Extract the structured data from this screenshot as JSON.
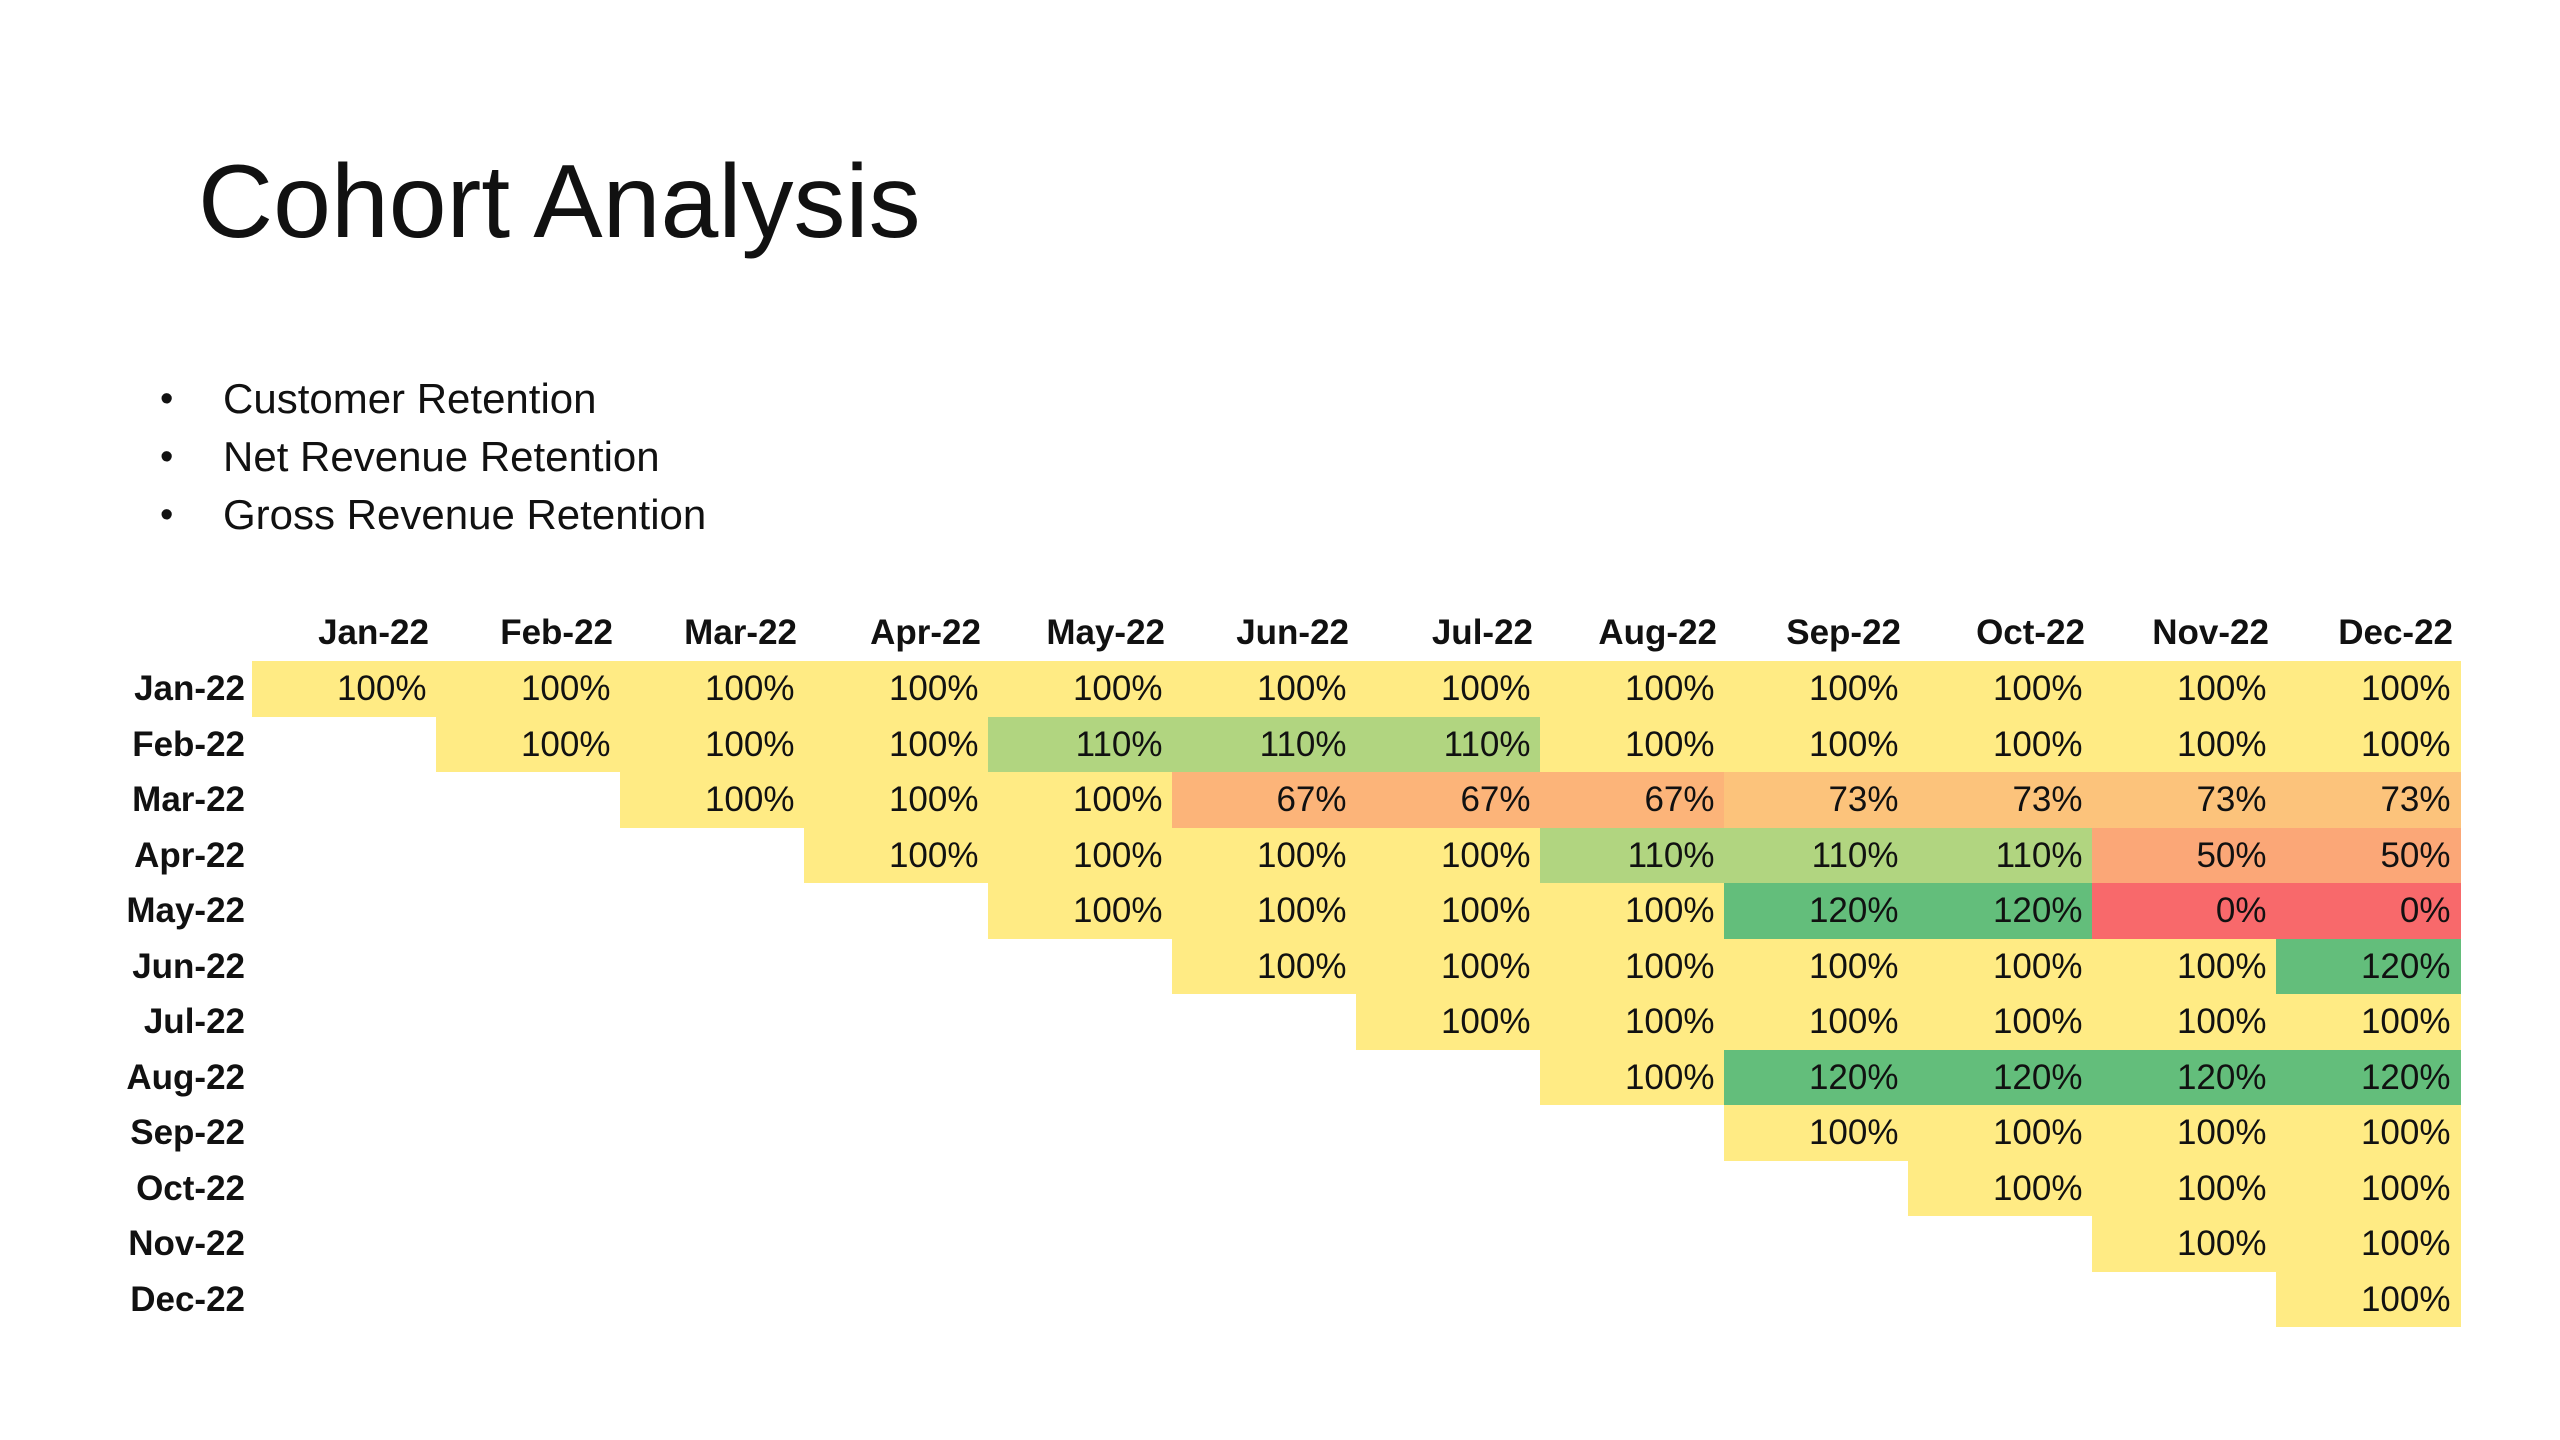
{
  "slide": {
    "title": "Cohort Analysis",
    "bullets": [
      "Customer Retention",
      "Net Revenue Retention",
      "Gross Revenue Retention"
    ]
  },
  "chart_data": {
    "type": "heatmap",
    "columns": [
      "Jan-22",
      "Feb-22",
      "Mar-22",
      "Apr-22",
      "May-22",
      "Jun-22",
      "Jul-22",
      "Aug-22",
      "Sep-22",
      "Oct-22",
      "Nov-22",
      "Dec-22"
    ],
    "rows": [
      "Jan-22",
      "Feb-22",
      "Mar-22",
      "Apr-22",
      "May-22",
      "Jun-22",
      "Jul-22",
      "Aug-22",
      "Sep-22",
      "Oct-22",
      "Nov-22",
      "Dec-22"
    ],
    "unit": "%",
    "values": [
      [
        100,
        100,
        100,
        100,
        100,
        100,
        100,
        100,
        100,
        100,
        100,
        100
      ],
      [
        null,
        100,
        100,
        100,
        110,
        110,
        110,
        100,
        100,
        100,
        100,
        100
      ],
      [
        null,
        null,
        100,
        100,
        100,
        67,
        67,
        67,
        73,
        73,
        73,
        73
      ],
      [
        null,
        null,
        null,
        100,
        100,
        100,
        100,
        110,
        110,
        110,
        50,
        50
      ],
      [
        null,
        null,
        null,
        null,
        100,
        100,
        100,
        100,
        120,
        120,
        0,
        0
      ],
      [
        null,
        null,
        null,
        null,
        null,
        100,
        100,
        100,
        100,
        100,
        100,
        120
      ],
      [
        null,
        null,
        null,
        null,
        null,
        null,
        100,
        100,
        100,
        100,
        100,
        100
      ],
      [
        null,
        null,
        null,
        null,
        null,
        null,
        null,
        100,
        120,
        120,
        120,
        120
      ],
      [
        null,
        null,
        null,
        null,
        null,
        null,
        null,
        null,
        100,
        100,
        100,
        100
      ],
      [
        null,
        null,
        null,
        null,
        null,
        null,
        null,
        null,
        null,
        100,
        100,
        100
      ],
      [
        null,
        null,
        null,
        null,
        null,
        null,
        null,
        null,
        null,
        null,
        100,
        100
      ],
      [
        null,
        null,
        null,
        null,
        null,
        null,
        null,
        null,
        null,
        null,
        null,
        100
      ]
    ],
    "colors": {
      "0": "#f8696b",
      "50": "#fba777",
      "67": "#fcb479",
      "73": "#fcc37b",
      "100": "#ffeb84",
      "110": "#b1d580",
      "120": "#63be7b"
    }
  }
}
